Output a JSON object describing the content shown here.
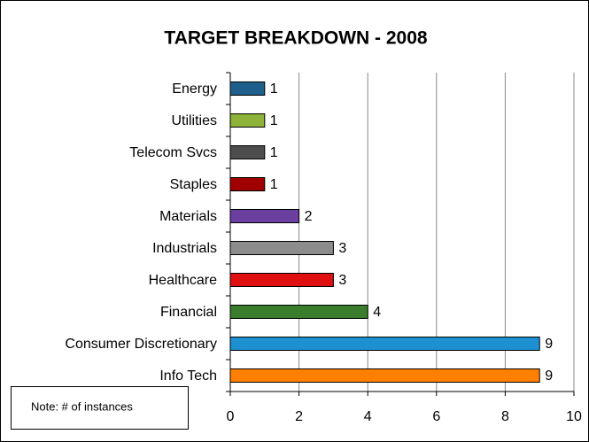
{
  "chart_data": {
    "type": "bar",
    "orientation": "horizontal",
    "title": "TARGET BREAKDOWN - 2008",
    "annotation": "Note: # of instances",
    "categories": [
      "Energy",
      "Utilities",
      "Telecom Svcs",
      "Staples",
      "Materials",
      "Industrials",
      "Healthcare",
      "Financial",
      "Consumer Discretionary",
      "Info Tech"
    ],
    "values": [
      1,
      1,
      1,
      1,
      2,
      3,
      3,
      4,
      9,
      9
    ],
    "colors": [
      "#1f5f8b",
      "#8db33a",
      "#4d4d4d",
      "#a00000",
      "#6a3fa0",
      "#8c8c8c",
      "#e01010",
      "#3a7d2c",
      "#1c90d0",
      "#ff8000"
    ],
    "xlim": [
      0,
      10
    ],
    "xticks": [
      0,
      2,
      4,
      6,
      8,
      10
    ],
    "grid": true
  }
}
